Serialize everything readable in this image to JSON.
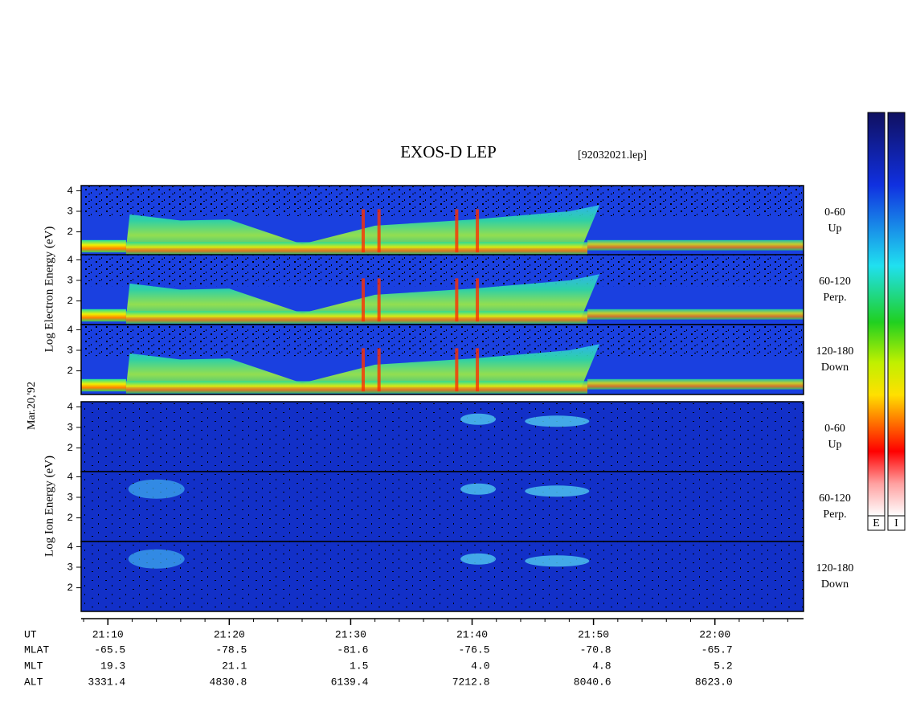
{
  "title": "EXOS-D LEP",
  "filename": "[92032021.lep]",
  "date_label": "Mar.20,'92",
  "electron_axis_label": "Log  Electron  Energy (eV)",
  "ion_axis_label": "Log  Ion  Energy (eV)",
  "colorbar_labels": [
    "E",
    "I"
  ],
  "chart_data": [
    {
      "type": "heatmap",
      "species": "electron",
      "pitch_label": [
        "0-60",
        "Up"
      ],
      "ylim": [
        0.85,
        4.25
      ],
      "yticks": [
        2,
        3,
        4
      ]
    },
    {
      "type": "heatmap",
      "species": "electron",
      "pitch_label": [
        "60-120",
        "Perp."
      ],
      "ylim": [
        0.85,
        4.25
      ],
      "yticks": [
        2,
        3,
        4
      ]
    },
    {
      "type": "heatmap",
      "species": "electron",
      "pitch_label": [
        "120-180",
        "Down"
      ],
      "ylim": [
        0.85,
        4.25
      ],
      "yticks": [
        2,
        3,
        4
      ]
    },
    {
      "type": "heatmap",
      "species": "ion",
      "pitch_label": [
        "0-60",
        "Up"
      ],
      "ylim": [
        0.85,
        4.25
      ],
      "yticks": [
        2,
        3,
        4
      ]
    },
    {
      "type": "heatmap",
      "species": "ion",
      "pitch_label": [
        "60-120",
        "Perp."
      ],
      "ylim": [
        0.85,
        4.25
      ],
      "yticks": [
        2,
        3,
        4
      ]
    },
    {
      "type": "heatmap",
      "species": "ion",
      "pitch_label": [
        "120-180",
        "Down"
      ],
      "ylim": [
        0.85,
        4.25
      ],
      "yticks": [
        2,
        3,
        4
      ]
    }
  ],
  "time_axis": {
    "xlim": [
      1267.8,
      1327.3
    ],
    "xticks": [
      {
        "value": 1270,
        "label": "21:10"
      },
      {
        "value": 1280,
        "label": "21:20"
      },
      {
        "value": 1290,
        "label": "21:30"
      },
      {
        "value": 1300,
        "label": "21:40"
      },
      {
        "value": 1310,
        "label": "21:50"
      },
      {
        "value": 1320,
        "label": "22:00"
      }
    ],
    "xminor_ticks": [
      1268,
      1272,
      1274,
      1276,
      1278,
      1282,
      1284,
      1286,
      1288,
      1292,
      1294,
      1296,
      1298,
      1302,
      1304,
      1306,
      1308,
      1312,
      1314,
      1316,
      1318,
      1322,
      1324,
      1326
    ]
  },
  "ephemeris": {
    "time_label": "UT",
    "rows": [
      {
        "label": "MLAT",
        "values": [
          "-65.5",
          "-78.5",
          "-81.6",
          "-76.5",
          "-70.8",
          "-65.7"
        ]
      },
      {
        "label": "MLT",
        "values": [
          "19.3",
          "21.1",
          "1.5",
          "4.0",
          "4.8",
          "5.2"
        ]
      },
      {
        "label": "ALT",
        "values": [
          "3331.4",
          "4830.8",
          "6139.4",
          "7212.8",
          "8040.6",
          "8623.0"
        ]
      }
    ]
  }
}
